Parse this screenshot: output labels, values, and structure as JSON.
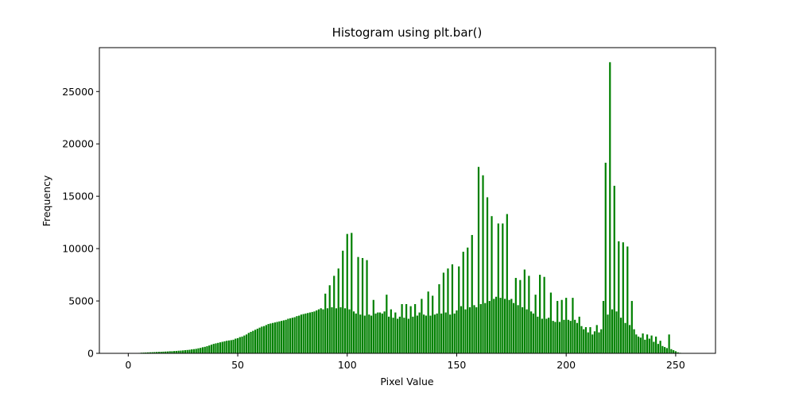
{
  "chart_data": {
    "type": "bar",
    "title": "Histogram using plt.bar()",
    "x_label": "Pixel Value",
    "y_label": "Frequency",
    "color": "#008000",
    "x": [
      0,
      1,
      2,
      3,
      4,
      5,
      6,
      7,
      8,
      9,
      10,
      11,
      12,
      13,
      14,
      15,
      16,
      17,
      18,
      19,
      20,
      21,
      22,
      23,
      24,
      25,
      26,
      27,
      28,
      29,
      30,
      31,
      32,
      33,
      34,
      35,
      36,
      37,
      38,
      39,
      40,
      41,
      42,
      43,
      44,
      45,
      46,
      47,
      48,
      49,
      50,
      51,
      52,
      53,
      54,
      55,
      56,
      57,
      58,
      59,
      60,
      61,
      62,
      63,
      64,
      65,
      66,
      67,
      68,
      69,
      70,
      71,
      72,
      73,
      74,
      75,
      76,
      77,
      78,
      79,
      80,
      81,
      82,
      83,
      84,
      85,
      86,
      87,
      88,
      89,
      90,
      91,
      92,
      93,
      94,
      95,
      96,
      97,
      98,
      99,
      100,
      101,
      102,
      103,
      104,
      105,
      106,
      107,
      108,
      109,
      110,
      111,
      112,
      113,
      114,
      115,
      116,
      117,
      118,
      119,
      120,
      121,
      122,
      123,
      124,
      125,
      126,
      127,
      128,
      129,
      130,
      131,
      132,
      133,
      134,
      135,
      136,
      137,
      138,
      139,
      140,
      141,
      142,
      143,
      144,
      145,
      146,
      147,
      148,
      149,
      150,
      151,
      152,
      153,
      154,
      155,
      156,
      157,
      158,
      159,
      160,
      161,
      162,
      163,
      164,
      165,
      166,
      167,
      168,
      169,
      170,
      171,
      172,
      173,
      174,
      175,
      176,
      177,
      178,
      179,
      180,
      181,
      182,
      183,
      184,
      185,
      186,
      187,
      188,
      189,
      190,
      191,
      192,
      193,
      194,
      195,
      196,
      197,
      198,
      199,
      200,
      201,
      202,
      203,
      204,
      205,
      206,
      207,
      208,
      209,
      210,
      211,
      212,
      213,
      214,
      215,
      216,
      217,
      218,
      219,
      220,
      221,
      222,
      223,
      224,
      225,
      226,
      227,
      228,
      229,
      230,
      231,
      232,
      233,
      234,
      235,
      236,
      237,
      238,
      239,
      240,
      241,
      242,
      243,
      244,
      245,
      246,
      247,
      248,
      249,
      250,
      251,
      252,
      253,
      254,
      255
    ],
    "values": [
      0,
      0,
      0,
      10,
      20,
      40,
      60,
      70,
      80,
      90,
      100,
      110,
      120,
      130,
      140,
      150,
      160,
      170,
      180,
      200,
      200,
      220,
      230,
      250,
      260,
      280,
      300,
      320,
      340,
      380,
      400,
      430,
      480,
      520,
      580,
      620,
      680,
      750,
      830,
      900,
      950,
      1000,
      1050,
      1100,
      1150,
      1200,
      1230,
      1260,
      1300,
      1400,
      1450,
      1550,
      1600,
      1700,
      1800,
      1950,
      2050,
      2150,
      2250,
      2350,
      2450,
      2550,
      2600,
      2700,
      2800,
      2850,
      2900,
      2950,
      3000,
      3050,
      3100,
      3150,
      3200,
      3300,
      3350,
      3400,
      3450,
      3550,
      3600,
      3700,
      3750,
      3800,
      3850,
      3900,
      3950,
      4000,
      4100,
      4200,
      4300,
      4200,
      5700,
      4300,
      6500,
      4400,
      7400,
      4300,
      8100,
      4400,
      9800,
      4300,
      11400,
      4200,
      11500,
      4000,
      3800,
      9200,
      3700,
      9100,
      3600,
      8900,
      3700,
      3600,
      5100,
      3800,
      3900,
      3900,
      3800,
      4000,
      5600,
      3500,
      4200,
      3400,
      3900,
      3300,
      3500,
      4700,
      3400,
      4700,
      3300,
      4500,
      3500,
      4700,
      3600,
      3900,
      5200,
      3700,
      3600,
      5900,
      3600,
      5500,
      3700,
      3800,
      6600,
      3800,
      7700,
      3900,
      8100,
      3700,
      8500,
      3800,
      4100,
      8300,
      4500,
      9700,
      4200,
      10100,
      4400,
      11300,
      4600,
      4400,
      17800,
      4700,
      17000,
      4800,
      14900,
      5000,
      13100,
      5200,
      5400,
      12400,
      5300,
      12400,
      5200,
      13300,
      5100,
      5200,
      4800,
      7200,
      4600,
      7000,
      4400,
      8000,
      4200,
      7400,
      4000,
      3800,
      5600,
      3500,
      7500,
      3300,
      7300,
      3300,
      3400,
      5800,
      3100,
      3000,
      5000,
      3000,
      5100,
      3200,
      5300,
      3200,
      3100,
      5300,
      3200,
      2900,
      3500,
      2600,
      2300,
      2500,
      2000,
      2500,
      1800,
      2100,
      2700,
      2000,
      2300,
      5000,
      18200,
      3700,
      27800,
      4200,
      16000,
      4000,
      10700,
      3400,
      10600,
      2900,
      10200,
      2700,
      5000,
      2300,
      1800,
      1600,
      1500,
      1900,
      1300,
      1800,
      1400,
      1700,
      1100,
      1600,
      900,
      1200,
      700,
      600,
      500,
      1800,
      400,
      300,
      200,
      100,
      50,
      20,
      10,
      5
    ],
    "xlim": [
      -13.19,
      268.19
    ],
    "ylim": [
      0,
      29190
    ],
    "xticks": [
      0,
      50,
      100,
      150,
      200,
      250
    ],
    "yticks": [
      0,
      5000,
      10000,
      15000,
      20000,
      25000
    ]
  }
}
